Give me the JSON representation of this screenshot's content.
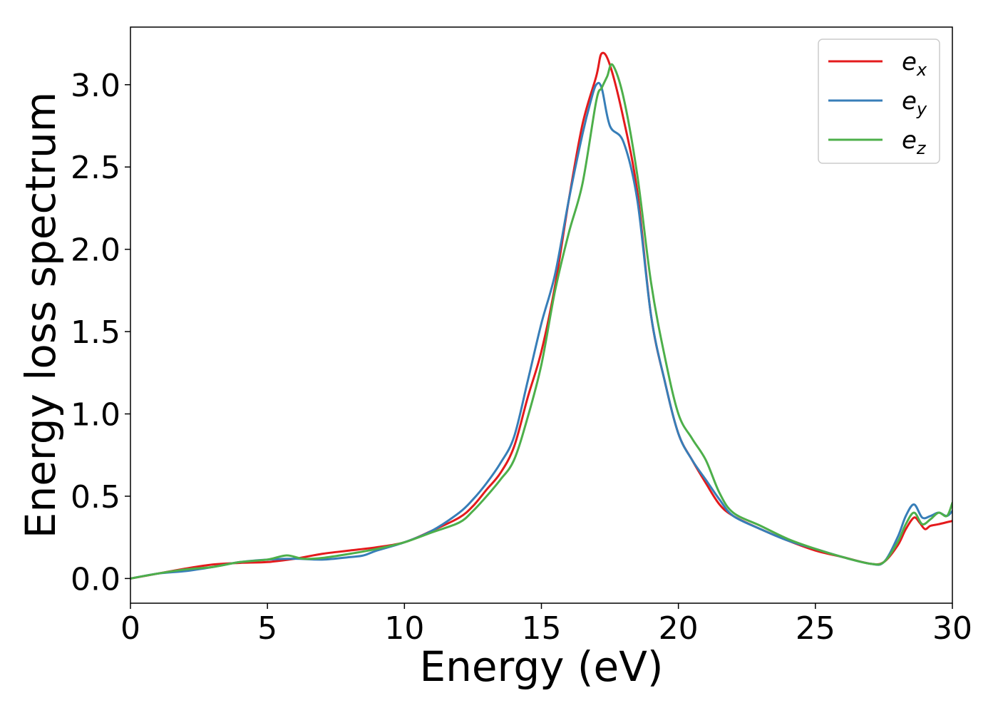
{
  "chart_data": {
    "type": "line",
    "title": "",
    "xlabel": "Energy (eV)",
    "ylabel": "Energy loss spectrum",
    "xlim": [
      0,
      30
    ],
    "ylim": [
      -0.15,
      3.35
    ],
    "xticks": [
      0,
      5,
      10,
      15,
      20,
      25,
      30
    ],
    "xtick_labels": [
      "0",
      "5",
      "10",
      "15",
      "20",
      "25",
      "30"
    ],
    "yticks": [
      0.0,
      0.5,
      1.0,
      1.5,
      2.0,
      2.5,
      3.0
    ],
    "ytick_labels": [
      "0.0",
      "0.5",
      "1.0",
      "1.5",
      "2.0",
      "2.5",
      "3.0"
    ],
    "grid": false,
    "legend_position": "top-right",
    "series": [
      {
        "name": "e_x",
        "legend_base": "e",
        "legend_sub": "x",
        "color": "#e41a1c",
        "x": [
          0,
          1,
          2,
          3,
          4,
          5,
          6,
          7,
          8,
          9,
          10,
          11,
          12,
          12.5,
          13,
          13.5,
          14,
          14.5,
          15,
          15.5,
          16,
          16.5,
          17,
          17.2,
          17.5,
          18,
          18.5,
          19,
          19.5,
          20,
          20.5,
          21,
          21.5,
          22,
          23,
          24,
          25,
          26,
          27,
          27.5,
          28,
          28.3,
          28.6,
          28.8,
          29,
          29.2,
          29.5,
          30
        ],
        "y": [
          0.0,
          0.03,
          0.06,
          0.085,
          0.095,
          0.1,
          0.12,
          0.15,
          0.17,
          0.19,
          0.22,
          0.29,
          0.37,
          0.44,
          0.54,
          0.64,
          0.8,
          1.1,
          1.38,
          1.78,
          2.3,
          2.76,
          3.05,
          3.19,
          3.12,
          2.79,
          2.35,
          1.6,
          1.2,
          0.88,
          0.72,
          0.58,
          0.45,
          0.38,
          0.3,
          0.23,
          0.17,
          0.13,
          0.09,
          0.1,
          0.2,
          0.3,
          0.37,
          0.34,
          0.3,
          0.32,
          0.33,
          0.35
        ]
      },
      {
        "name": "e_y",
        "legend_base": "e",
        "legend_sub": "y",
        "color": "#377eb8",
        "x": [
          0,
          1,
          2,
          3,
          4,
          5,
          6,
          7,
          8,
          8.5,
          9,
          10,
          11,
          12,
          12.5,
          13,
          13.5,
          14,
          14.5,
          15,
          15.5,
          16,
          16.5,
          16.8,
          17.0,
          17.2,
          17.5,
          18,
          18.5,
          19,
          19.5,
          20,
          20.5,
          21,
          21.5,
          22,
          23,
          24,
          25,
          26,
          27,
          27.5,
          28,
          28.3,
          28.6,
          28.9,
          29.2,
          29.5,
          29.8,
          30
        ],
        "y": [
          0.0,
          0.03,
          0.045,
          0.07,
          0.1,
          0.115,
          0.12,
          0.115,
          0.13,
          0.14,
          0.17,
          0.22,
          0.29,
          0.4,
          0.48,
          0.58,
          0.7,
          0.86,
          1.2,
          1.55,
          1.85,
          2.3,
          2.7,
          2.9,
          3.0,
          2.98,
          2.75,
          2.65,
          2.3,
          1.6,
          1.2,
          0.88,
          0.72,
          0.6,
          0.48,
          0.38,
          0.3,
          0.23,
          0.18,
          0.13,
          0.09,
          0.1,
          0.25,
          0.38,
          0.45,
          0.37,
          0.38,
          0.4,
          0.38,
          0.41
        ]
      },
      {
        "name": "e_z",
        "legend_base": "e",
        "legend_sub": "z",
        "color": "#4daf4a",
        "x": [
          0,
          1,
          2,
          3,
          4,
          5,
          5.7,
          6.3,
          7,
          8,
          9,
          10,
          11,
          12,
          12.5,
          13,
          13.5,
          14,
          14.5,
          15,
          15.5,
          16,
          16.5,
          17,
          17.2,
          17.4,
          17.6,
          18,
          18.5,
          19,
          19.5,
          20,
          20.5,
          21,
          21.5,
          22,
          23,
          24,
          25,
          26,
          27,
          27.5,
          28,
          28.3,
          28.6,
          28.9,
          29.2,
          29.5,
          29.8,
          30
        ],
        "y": [
          0.0,
          0.03,
          0.055,
          0.07,
          0.1,
          0.115,
          0.14,
          0.12,
          0.125,
          0.15,
          0.18,
          0.22,
          0.28,
          0.34,
          0.41,
          0.5,
          0.6,
          0.72,
          0.98,
          1.3,
          1.75,
          2.1,
          2.4,
          2.9,
          2.98,
          3.05,
          3.12,
          2.92,
          2.45,
          1.8,
          1.35,
          1.0,
          0.85,
          0.72,
          0.52,
          0.4,
          0.32,
          0.24,
          0.18,
          0.13,
          0.09,
          0.1,
          0.22,
          0.33,
          0.4,
          0.33,
          0.36,
          0.4,
          0.38,
          0.46
        ]
      }
    ]
  }
}
